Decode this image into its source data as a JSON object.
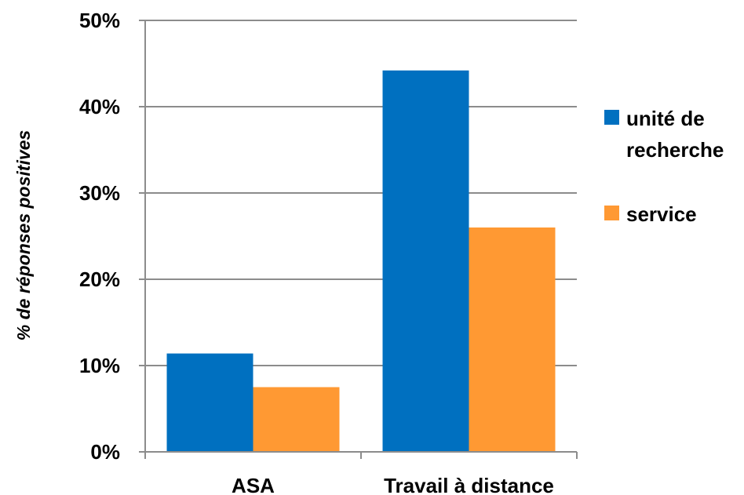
{
  "chart_data": {
    "type": "bar",
    "categories": [
      "ASA",
      "Travail à distance"
    ],
    "series": [
      {
        "name_lines": [
          "unité de",
          "recherche"
        ],
        "values": [
          11.4,
          44.2
        ],
        "color": "#0070C0"
      },
      {
        "name_lines": [
          "service"
        ],
        "values": [
          7.5,
          26.0
        ],
        "color": "#FF9933"
      }
    ],
    "ylabel": "% de réponses positives",
    "ylim": [
      0,
      50
    ],
    "yticks": [
      "0%",
      "10%",
      "20%",
      "30%",
      "40%",
      "50%"
    ],
    "grid": true,
    "legend": "right"
  }
}
